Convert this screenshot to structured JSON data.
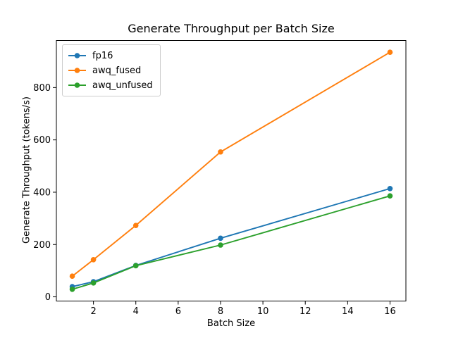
{
  "figure": {
    "background": "#ffffff"
  },
  "chart_data": {
    "type": "line",
    "title": "Generate Throughput per Batch Size",
    "xlabel": "Batch Size",
    "ylabel": "Generate Throughput (tokens/s)",
    "x": [
      1,
      2,
      4,
      8,
      16
    ],
    "series": [
      {
        "name": "fp16",
        "color": "#1f77b4",
        "values": [
          39,
          58,
          120,
          224,
          414
        ]
      },
      {
        "name": "awq_fused",
        "color": "#ff7f0e",
        "values": [
          79,
          142,
          273,
          554,
          935
        ]
      },
      {
        "name": "awq_unfused",
        "color": "#2ca02c",
        "values": [
          29,
          53,
          119,
          198,
          386
        ]
      }
    ],
    "xticks": [
      2,
      4,
      6,
      8,
      10,
      12,
      14,
      16
    ],
    "yticks": [
      0,
      200,
      400,
      600,
      800
    ],
    "xlim": [
      0.25,
      16.75
    ],
    "ylim": [
      -16,
      980
    ],
    "grid": false,
    "marker": "circle",
    "legend_position": "upper-left",
    "axis_color": "#000000",
    "text_color": "#000000"
  }
}
